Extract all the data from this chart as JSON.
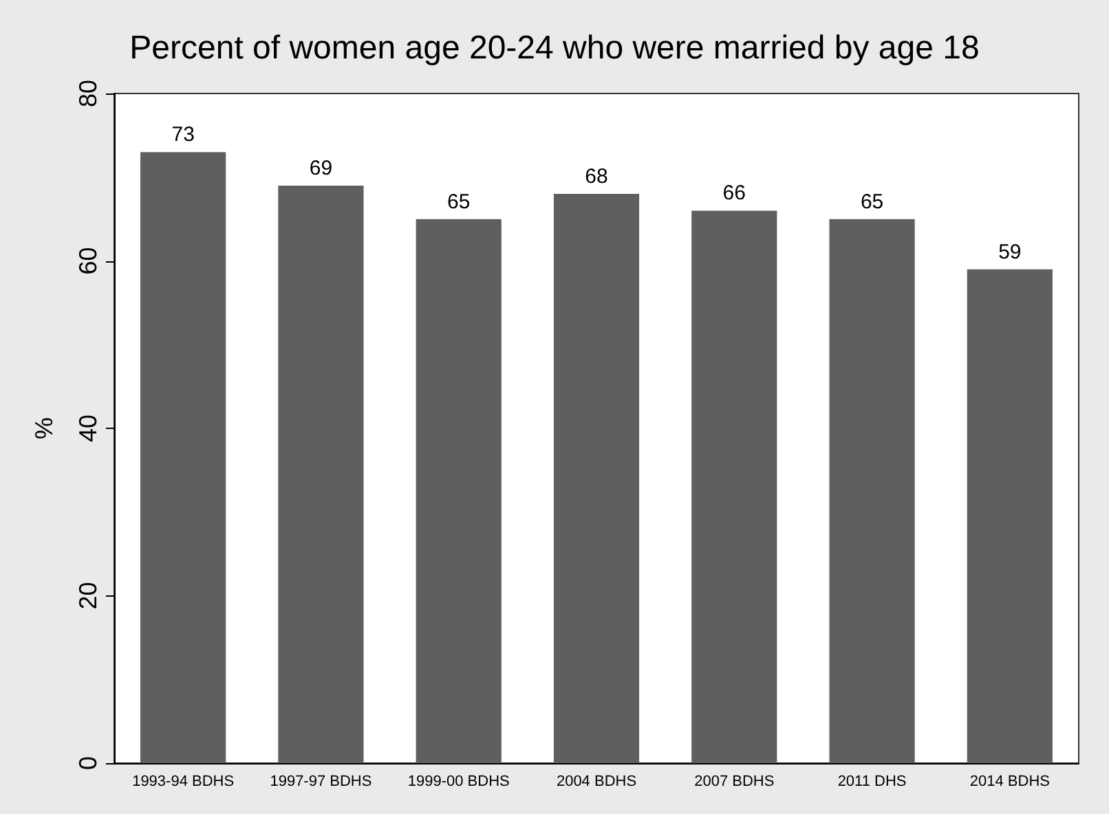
{
  "chart_data": {
    "type": "bar",
    "title": "Percent of women age 20-24 who were married by age 18",
    "ylabel": "%",
    "categories": [
      "1993-94 BDHS",
      "1997-97 BDHS",
      "1999-00 BDHS",
      "2004 BDHS",
      "2007 BDHS",
      "2011 DHS",
      "2014 BDHS"
    ],
    "values": [
      73,
      69,
      65,
      68,
      66,
      65,
      59
    ],
    "color": "#5f5f5f",
    "ylim": [
      0,
      80
    ],
    "yticks": [
      0,
      20,
      40,
      60,
      80
    ],
    "data_labels": true,
    "grid": false
  }
}
